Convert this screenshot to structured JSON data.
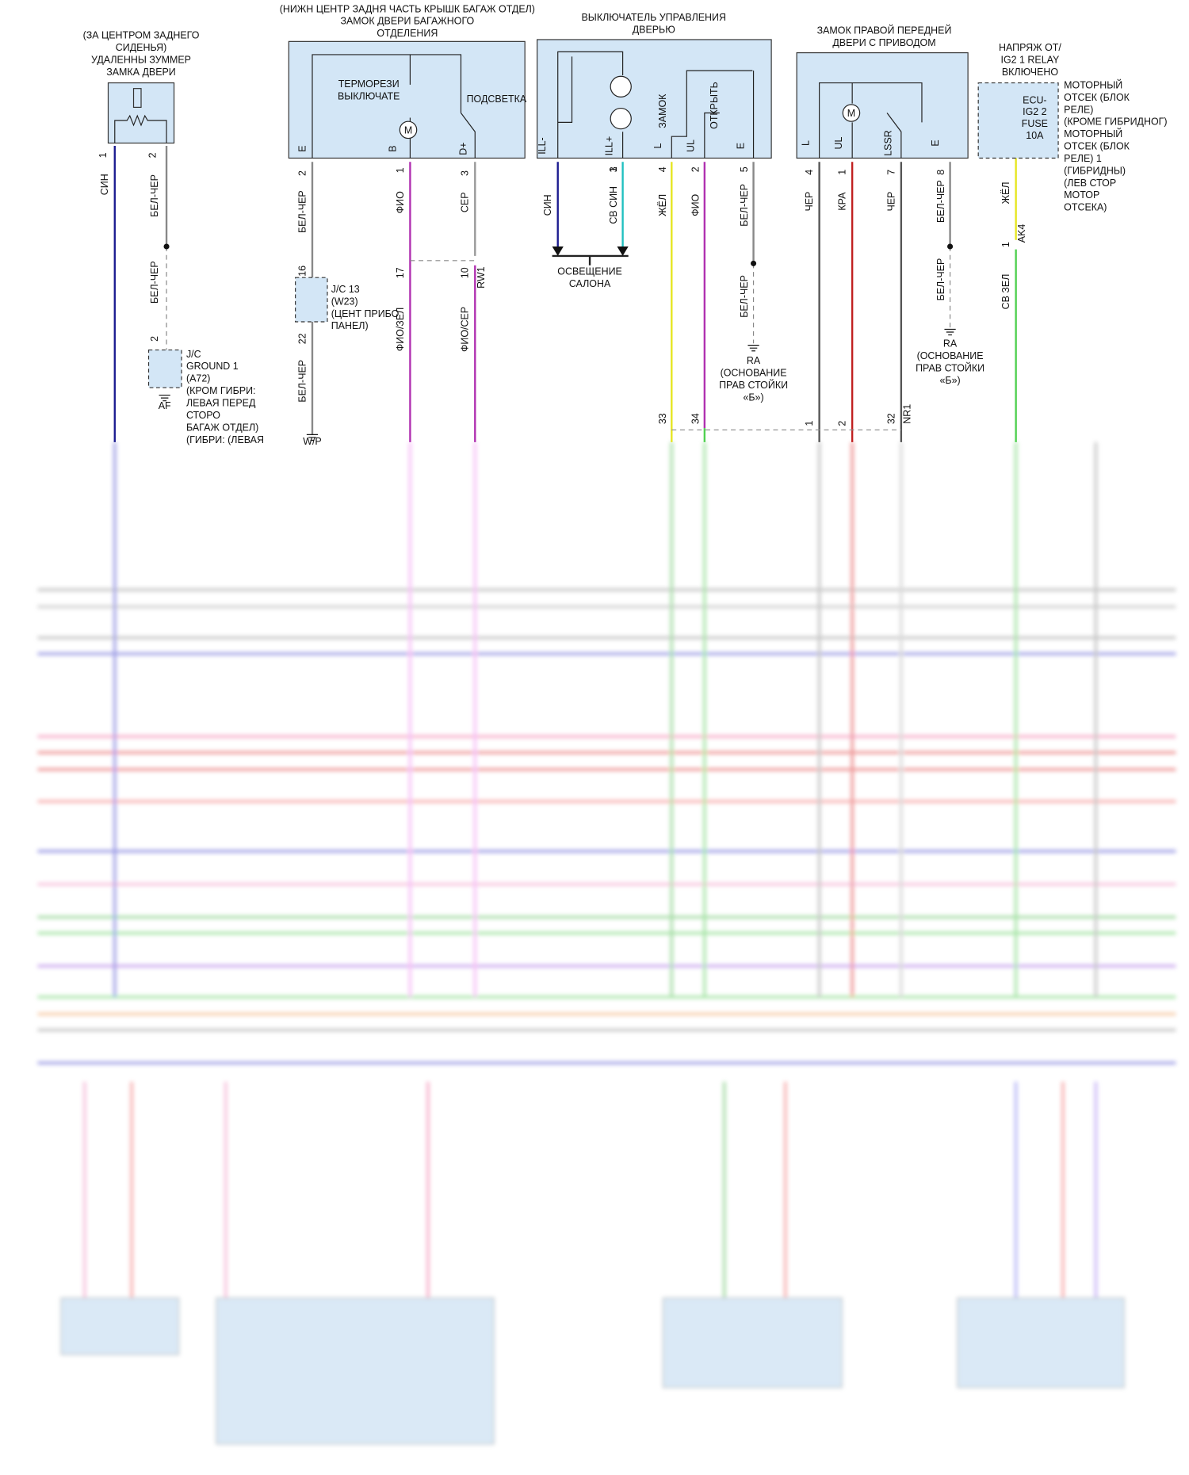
{
  "buzzer": {
    "label": [
      "(ЗА ЦЕНТРОМ ЗАДНЕГО",
      "СИДЕНЬЯ)",
      "УДАЛЕННЫ ЗУММЕР",
      "ЗАМКА ДВЕРИ"
    ],
    "pins": [
      "1",
      "2"
    ],
    "wires": [
      "СИН",
      "БЕЛ-ЧЕР",
      "БЕЛ-ЧЕР"
    ]
  },
  "ground_jc": {
    "pin": "2",
    "label": [
      "J/C",
      "GROUND 1",
      "(A72)",
      "(КРОМ ГИБРИ:",
      "ЛЕВАЯ ПЕРЕД",
      "СТОРО",
      "БАГАЖ ОТДЕЛ)",
      "(ГИБРИ: (ЛЕВАЯ"
    ],
    "ground": "AF"
  },
  "trunk_lock": {
    "location": "(НИЖН ЦЕНТР ЗАДНЯ ЧАСТЬ КРЫШК БАГАЖ ОТДЕЛ)",
    "label": [
      "ЗАМОК ДВЕРИ БАГАЖНОГО",
      "ОТДЕЛЕНИЯ"
    ],
    "inner": [
      "ТЕРМОРЕЗИ",
      "ВЫКЛЮЧАТЕ",
      "ПОДСВЕТКА",
      "M"
    ],
    "pin_names": [
      "E",
      "B",
      "D+"
    ],
    "pins": [
      "2",
      "1",
      "3"
    ],
    "wires": [
      "БЕЛ-ЧЕР",
      "ФИО",
      "СЕР"
    ]
  },
  "jc13": {
    "pins": [
      "16",
      "22"
    ],
    "label": [
      "J/C 13",
      "(W23)",
      "(ЦЕНТ ПРИБО",
      "ПАНЕЛ)"
    ],
    "wire": "БЕЛ-ЧЕР",
    "ground": "W/P"
  },
  "connector_rw1": {
    "pins": [
      "17",
      "10"
    ],
    "name": "RW1",
    "wires": [
      "ФИО/ЗЕЛ",
      "ФИО/СЕР"
    ]
  },
  "door_switch": {
    "label": [
      "ВЫКЛЮЧАТЕЛЬ УПРАВЛЕНИЯ",
      "ДВЕРЬЮ"
    ],
    "inner": [
      "ЗАМОК",
      "ОТКРЫТЬ"
    ],
    "pin_names": [
      "ILL-",
      "ILL+",
      "L",
      "UL",
      "E"
    ],
    "pins": [
      "1",
      "3",
      "4",
      "2",
      "5"
    ],
    "wires": [
      "СИН",
      "СВ СИН",
      "ЖЁЛ",
      "ФИО",
      "БЕЛ-ЧЕР"
    ],
    "lighting": [
      "ОСВЕЩЕНИЕ",
      "САЛОНА"
    ],
    "ground_wire": "БЕЛ-ЧЕР",
    "ground": [
      "RA",
      "(ОСНОВАНИЕ",
      "ПРАВ СТОЙКИ",
      "«Б»)"
    ]
  },
  "door_lock": {
    "label": [
      "ЗАМОК ПРАВОЙ ПЕРЕДНЕЙ",
      "ДВЕРИ С ПРИВОДОМ"
    ],
    "inner": [
      "M"
    ],
    "pin_names": [
      "L",
      "UL",
      "LSSR",
      "E"
    ],
    "pins": [
      "4",
      "1",
      "7",
      "8"
    ],
    "wires": [
      "ЧЕР",
      "КРА",
      "ЧЕР",
      "БЕЛ-ЧЕР"
    ],
    "ground_wire": "БЕЛ-ЧЕР",
    "ground": [
      "RA",
      "(ОСНОВАНИЕ",
      "ПРАВ СТОЙКИ",
      "«Б»)"
    ]
  },
  "connector_nr1": {
    "pins": [
      "33",
      "34",
      "1",
      "2",
      "32"
    ],
    "name": "NR1"
  },
  "relay": {
    "label": [
      "НАПРЯЖ ОТ/",
      "IG2 1 RELAY",
      "ВКЛЮЧЕНО"
    ],
    "inner": [
      "ECU-",
      "IG2 2",
      "FUSE",
      "10A"
    ],
    "location": [
      "МОТОРНЫЙ",
      "ОТСЕК (БЛОК",
      "РЕЛЕ)",
      "(КРОМЕ ГИБРИДНОГ)",
      "МОТОРНЫЙ",
      "ОТСЕК (БЛОК",
      "РЕЛЕ) 1",
      "(ГИБРИДНЫ)",
      "(ЛЕВ СТОР",
      "МОТОР",
      "ОТСЕКА)"
    ],
    "wire": "ЖЁЛ",
    "pin": "1",
    "connector": "AK4",
    "wire_below": "СВ ЗЕЛ"
  }
}
